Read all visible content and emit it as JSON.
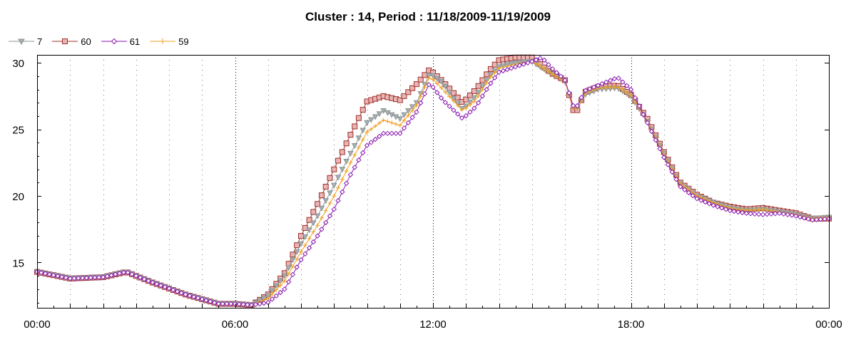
{
  "chart_data": {
    "type": "line",
    "title": "Cluster : 14, Period : 11/18/2009-11/19/2009",
    "xlabel": "",
    "ylabel": "",
    "x_tick_labels": [
      "00:00",
      "06:00",
      "12:00",
      "18:00",
      "00:00"
    ],
    "x_tick_hours": [
      0,
      6,
      12,
      18,
      24
    ],
    "xlim": [
      0,
      24
    ],
    "ylim": [
      11.6,
      30.6
    ],
    "y_ticks": [
      15,
      20,
      25,
      30
    ],
    "grid": "vertical dotted",
    "legend_position": "top-left",
    "sample_interval_hours": 0.125,
    "series": [
      {
        "name": "7",
        "color": "#8c9496",
        "marker": "triangle-down",
        "x": [
          0,
          1,
          2,
          2.7,
          3.5,
          4.5,
          5.5,
          6,
          6.5,
          7,
          7.5,
          8,
          8.5,
          9,
          9.5,
          10,
          10.5,
          11,
          11.5,
          11.9,
          12.3,
          12.6,
          12.9,
          13.3,
          13.7,
          14,
          14.5,
          15,
          15.3,
          15.6,
          16,
          16.3,
          16.6,
          17,
          17.6,
          18,
          18.5,
          19,
          19.5,
          20,
          20.5,
          21,
          21.5,
          22,
          22.5,
          23,
          23.5,
          24
        ],
        "y": [
          14.3,
          13.8,
          13.9,
          14.3,
          13.5,
          12.6,
          11.9,
          11.9,
          11.8,
          12.5,
          14.0,
          16.4,
          18.5,
          20.8,
          23.2,
          25.5,
          26.4,
          25.8,
          27.0,
          29.2,
          28.5,
          27.4,
          26.5,
          27.5,
          29.0,
          29.7,
          30.0,
          30.1,
          29.6,
          29.2,
          28.6,
          26.3,
          27.6,
          28.0,
          28.1,
          27.5,
          25.6,
          23.2,
          20.9,
          20.0,
          19.5,
          19.1,
          18.9,
          19.0,
          18.8,
          18.6,
          18.3,
          18.4
        ]
      },
      {
        "name": "60",
        "color": "#a0322d",
        "marker": "square",
        "x": [
          0,
          1,
          2,
          2.7,
          3.5,
          4.5,
          5.5,
          6,
          6.5,
          7,
          7.5,
          8,
          8.5,
          9,
          9.5,
          10,
          10.5,
          11,
          11.5,
          11.9,
          12.3,
          12.6,
          12.9,
          13.3,
          13.7,
          14,
          14.5,
          15,
          15.3,
          15.6,
          16,
          16.3,
          16.6,
          17,
          17.6,
          18,
          18.5,
          19,
          19.5,
          20,
          20.5,
          21,
          21.5,
          22,
          22.5,
          23,
          23.5,
          24
        ],
        "y": [
          14.3,
          13.8,
          13.9,
          14.3,
          13.5,
          12.6,
          11.9,
          11.9,
          11.8,
          12.6,
          14.2,
          17.0,
          19.4,
          22.0,
          24.6,
          27.1,
          27.5,
          27.2,
          28.4,
          29.5,
          28.6,
          27.8,
          27.0,
          28.0,
          29.4,
          30.2,
          30.4,
          30.4,
          29.8,
          29.2,
          28.7,
          26.0,
          27.8,
          28.2,
          28.3,
          27.6,
          25.8,
          23.3,
          21.0,
          20.1,
          19.5,
          19.2,
          19.0,
          19.1,
          18.9,
          18.7,
          18.3,
          18.3
        ]
      },
      {
        "name": "61",
        "color": "#8a1ab0",
        "marker": "diamond",
        "x": [
          0,
          1,
          2,
          2.7,
          3.5,
          4.5,
          5.5,
          6,
          6.5,
          7,
          7.5,
          8,
          8.5,
          9,
          9.5,
          10,
          10.5,
          11,
          11.5,
          11.9,
          12.3,
          12.6,
          12.9,
          13.3,
          13.7,
          14,
          14.5,
          15,
          15.3,
          15.6,
          16,
          16.3,
          16.6,
          17,
          17.6,
          18,
          18.5,
          19,
          19.5,
          20,
          20.5,
          21,
          21.5,
          22,
          22.5,
          23,
          23.5,
          24
        ],
        "y": [
          14.3,
          13.8,
          13.9,
          14.3,
          13.5,
          12.6,
          11.9,
          11.9,
          11.8,
          12.0,
          13.0,
          15.2,
          17.0,
          19.0,
          21.6,
          23.8,
          24.7,
          24.7,
          26.3,
          28.5,
          27.2,
          26.5,
          25.8,
          26.7,
          28.3,
          29.3,
          29.7,
          30.1,
          30.4,
          29.6,
          28.7,
          26.4,
          27.9,
          28.3,
          28.9,
          28.0,
          25.5,
          22.9,
          20.7,
          19.8,
          19.3,
          18.9,
          18.7,
          18.6,
          18.7,
          18.5,
          18.2,
          18.3
        ]
      },
      {
        "name": "59",
        "color": "#f0a020",
        "marker": "plus",
        "x": [
          0,
          1,
          2,
          2.7,
          3.5,
          4.5,
          5.5,
          6,
          6.5,
          7,
          7.5,
          8,
          8.5,
          9,
          9.5,
          10,
          10.5,
          11,
          11.5,
          11.9,
          12.3,
          12.6,
          12.9,
          13.3,
          13.7,
          14,
          14.5,
          15,
          15.3,
          15.6,
          16,
          16.3,
          16.6,
          17,
          17.6,
          18,
          18.5,
          19,
          19.5,
          20,
          20.5,
          21,
          21.5,
          22,
          22.5,
          23,
          23.5,
          24
        ],
        "y": [
          14.3,
          13.8,
          13.9,
          14.3,
          13.5,
          12.6,
          11.9,
          11.9,
          11.8,
          12.3,
          13.6,
          15.8,
          17.8,
          20.0,
          22.5,
          24.8,
          25.7,
          25.3,
          26.8,
          29.0,
          28.0,
          27.2,
          26.4,
          27.2,
          28.8,
          29.6,
          29.9,
          30.1,
          29.7,
          29.2,
          28.6,
          26.2,
          27.7,
          28.1,
          28.2,
          27.6,
          25.6,
          23.1,
          20.9,
          20.0,
          19.5,
          19.1,
          18.9,
          19.0,
          18.8,
          18.6,
          18.3,
          18.4
        ]
      }
    ]
  }
}
